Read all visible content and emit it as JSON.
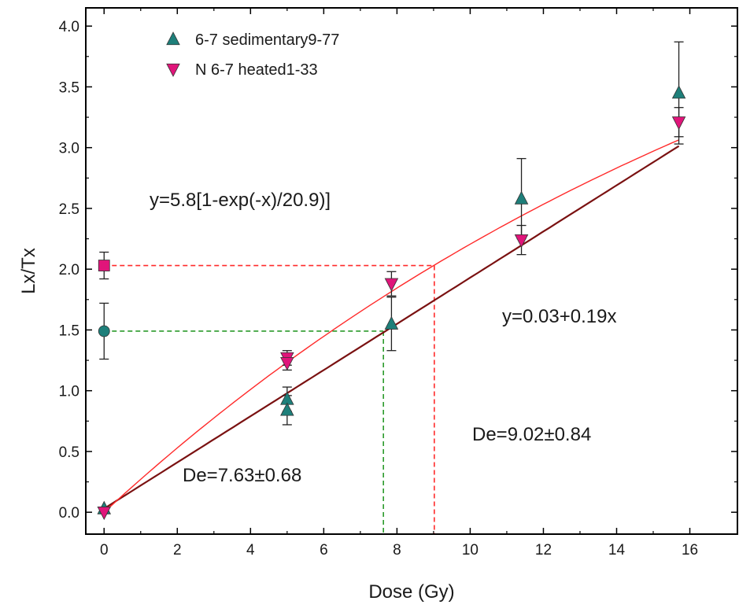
{
  "chart_data": {
    "type": "scatter",
    "xlabel": "Dose (Gy)",
    "ylabel": "Lx/Tx",
    "xlim": [
      -0.5,
      17.3
    ],
    "ylim": [
      -0.18,
      4.15
    ],
    "xticks": [
      0,
      2,
      4,
      6,
      8,
      10,
      12,
      14,
      16
    ],
    "xtick_labels": [
      "0",
      "2",
      "4",
      "6",
      "8",
      "10",
      "12",
      "14",
      "16"
    ],
    "yticks": [
      0.0,
      0.5,
      1.0,
      1.5,
      2.0,
      2.5,
      3.0,
      3.5,
      4.0
    ],
    "ytick_labels": [
      "0.0",
      "0.5",
      "1.0",
      "1.5",
      "2.0",
      "2.5",
      "3.0",
      "3.5",
      "4.0"
    ],
    "legend_position": "top-left",
    "grid": false,
    "series": [
      {
        "name": "6-7 sedimentary9-77",
        "marker": "triangle-up",
        "color": "#1e7f7a",
        "points": [
          {
            "x": 0,
            "y": 0.03,
            "err": 0
          },
          {
            "x": 5,
            "y": 0.93,
            "err": 0.1
          },
          {
            "x": 5,
            "y": 0.84,
            "err": 0.12
          },
          {
            "x": 7.85,
            "y": 1.55,
            "err": 0.22
          },
          {
            "x": 11.4,
            "y": 2.58,
            "err": 0.33
          },
          {
            "x": 15.7,
            "y": 3.45,
            "err": 0.42
          }
        ]
      },
      {
        "name": "N 6-7 heated1-33",
        "marker": "triangle-down",
        "color": "#e0157a",
        "points": [
          {
            "x": 0,
            "y": 0.0,
            "err": 0
          },
          {
            "x": 5,
            "y": 1.27,
            "err": 0.06
          },
          {
            "x": 5,
            "y": 1.23,
            "err": 0.06
          },
          {
            "x": 7.85,
            "y": 1.88,
            "err": 0.1
          },
          {
            "x": 11.4,
            "y": 2.24,
            "err": 0.12
          },
          {
            "x": 15.7,
            "y": 3.21,
            "err": 0.12
          }
        ]
      }
    ],
    "natural_points": [
      {
        "x": 0,
        "y": 1.49,
        "err": 0.23,
        "marker": "circle",
        "color": "#1e7f7a"
      },
      {
        "x": 0,
        "y": 2.03,
        "err": 0.11,
        "marker": "square",
        "color": "#e0157a"
      }
    ],
    "fits": [
      {
        "type": "linear",
        "intercept": 0.03,
        "slope": 0.19,
        "x_range": [
          0,
          15.7
        ],
        "color": "#7a1111",
        "label": "y=0.03+0.19x"
      },
      {
        "type": "saturating_exponential",
        "amplitude": 5.8,
        "d0": 20.9,
        "x_range": [
          0,
          15.7
        ],
        "color": "#ff2a2a",
        "label": "y=5.8[1-exp(-x)/20.9)]"
      }
    ],
    "equivalent_doses": [
      {
        "level": 1.49,
        "de": 7.63,
        "color": "#2a9a2a",
        "label": "De=7.63±0.68"
      },
      {
        "level": 2.03,
        "de": 9.02,
        "color": "#ff2a2a",
        "label": "De=9.02±0.84"
      }
    ]
  }
}
